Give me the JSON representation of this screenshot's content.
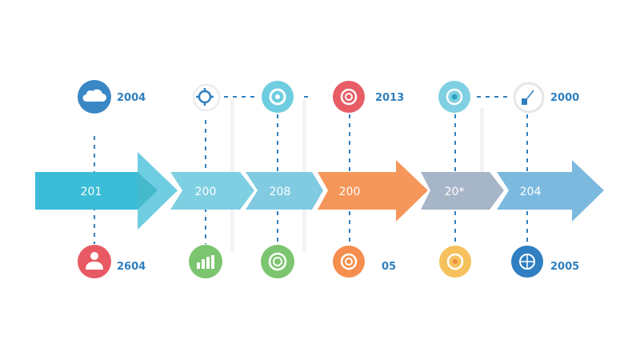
{
  "arrows": [
    {
      "label": "201",
      "color": "#3bbcd7",
      "head": "#6fcde2"
    },
    {
      "label": "200",
      "color": "#7fcfe3"
    },
    {
      "label": "208",
      "color": "#80cbe2"
    },
    {
      "label": "200",
      "color": "#f5975a"
    },
    {
      "label": "20*",
      "color": "#a7b5c8"
    },
    {
      "label": "204",
      "color": "#7cb9df"
    }
  ],
  "top_nodes": [
    {
      "icon": "cloud-icon",
      "color": "#3a87c6",
      "label": "2004"
    },
    {
      "icon": "gear-icon",
      "color": "#ffffff",
      "label": ""
    },
    {
      "icon": "target-icon",
      "color": "#6ecde0",
      "label": ""
    },
    {
      "icon": "target-icon",
      "color": "#e85d65",
      "label": "2013"
    },
    {
      "icon": "target-icon",
      "color": "#7fd0e2",
      "label": ""
    },
    {
      "icon": "checkbox-icon",
      "color": "#ffffff",
      "label": "2000"
    }
  ],
  "bottom_nodes": [
    {
      "icon": "user-icon",
      "color": "#e85a63",
      "label": "2604"
    },
    {
      "icon": "bar-chart-icon",
      "color": "#7cc570",
      "label": ""
    },
    {
      "icon": "target-icon",
      "color": "#7cc570",
      "label": ""
    },
    {
      "icon": "target-icon",
      "color": "#f58e4e",
      "label": "05"
    },
    {
      "icon": "target-icon",
      "color": "#f6c15c",
      "label": ""
    },
    {
      "icon": "globe-icon",
      "color": "#2f7fc2",
      "label": "2005"
    }
  ],
  "line_color": "#2f7fbf"
}
